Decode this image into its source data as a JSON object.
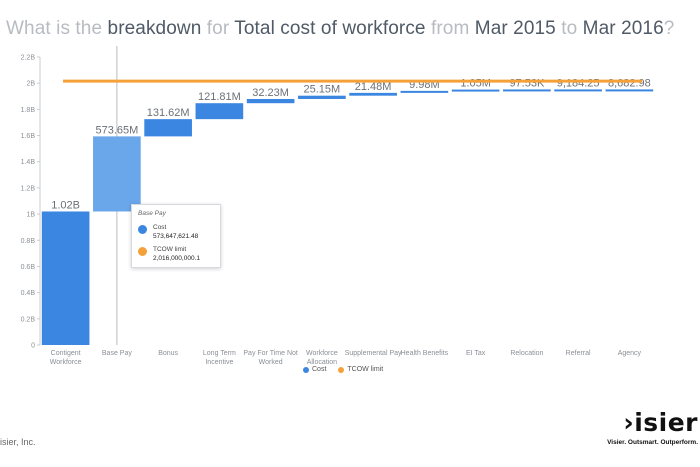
{
  "title": {
    "p1": "What is the ",
    "p2": "breakdown",
    "p3": " for ",
    "p4": "Total cost of workforce",
    "p5": " from ",
    "p6": "Mar 2015",
    "p7": " to ",
    "p8": "Mar 2016",
    "p9": "?"
  },
  "colors": {
    "cost": "#3b86e0",
    "cost_selected": "#6aa6ea",
    "limit": "#f5a13a",
    "axis_text": "#8a8f95",
    "grid": "#e4e6e9"
  },
  "chart_data": {
    "type": "bar",
    "subtype": "waterfall",
    "categories": [
      "Contigent Workforce",
      "Base Pay",
      "Bonus",
      "Long Term Incentive",
      "Pay For Time Not Worked",
      "Workforce Allocation",
      "Supplemental Pay",
      "Health Benefits",
      "EI Tax",
      "Relocation",
      "Referral",
      "Agency"
    ],
    "category_lines": [
      [
        "Contigent",
        "Workforce"
      ],
      [
        "Base Pay"
      ],
      [
        "Bonus"
      ],
      [
        "Long Term",
        "Incentive"
      ],
      [
        "Pay For Time Not",
        "Worked"
      ],
      [
        "Workforce",
        "Allocation"
      ],
      [
        "Supplemental Pay"
      ],
      [
        "Health Benefits"
      ],
      [
        "EI Tax"
      ],
      [
        "Relocation"
      ],
      [
        "Referral"
      ],
      [
        "Agency"
      ]
    ],
    "values": [
      1020000000,
      573647621.48,
      131620000,
      121810000,
      32230000,
      25150000,
      21480000,
      9980000,
      1050000,
      97530,
      9184.25,
      8682.98
    ],
    "data_labels": [
      "1.02B",
      "573.65M",
      "131.62M",
      "121.81M",
      "32.23M",
      "25.15M",
      "21.48M",
      "9.98M",
      "1.05M",
      "97.53K",
      "9,184.25",
      "8,682.98"
    ],
    "limit": 2016000000,
    "ylim": [
      0,
      2200000000
    ],
    "yticks": [
      0,
      200000000,
      400000000,
      600000000,
      800000000,
      1000000000,
      1200000000,
      1400000000,
      1600000000,
      1800000000,
      2000000000,
      2200000000
    ],
    "ytick_labels": [
      "0",
      "0.2B",
      "0.4B",
      "0.6B",
      "0.8B",
      "1B",
      "1.2B",
      "1.4B",
      "1.6B",
      "1.8B",
      "2B",
      "2.2B"
    ],
    "selected_index": 1,
    "legend": [
      {
        "name": "Cost"
      },
      {
        "name": "TCOW limit"
      }
    ],
    "legend_position": "bottom-center",
    "grid": false
  },
  "tooltip": {
    "title": "Base Pay",
    "cost_label": "Cost",
    "cost_value": "573,647,621.48",
    "limit_label": "TCOW limit",
    "limit_value": "2,016,000,000.1"
  },
  "footer": {
    "copyright": "isier, Inc.",
    "brand": "isier",
    "tagline": "Visier. Outsmart. Outperform."
  }
}
